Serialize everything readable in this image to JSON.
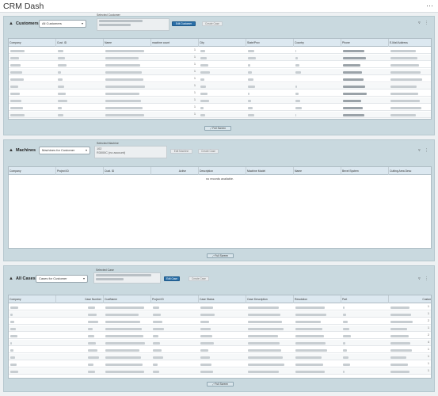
{
  "app": {
    "title": "CRM Dash",
    "menu_glyph": "⋯"
  },
  "icons": {
    "collapse": "chevron-up-icon",
    "filter": "filter-icon",
    "menu": "vertical-dots-icon",
    "fullscreen": "expand-icon"
  },
  "colors": {
    "primary_button": "#2a6fa8",
    "panel_bg": "#c9d9df",
    "header_bg": "#dce8f0"
  },
  "customers": {
    "title": "Customers",
    "filter_value": "All Customers",
    "selected_label": "Selected Customer",
    "edit_label": "Edit Customer",
    "create_label": "Create Case",
    "columns": [
      "Company",
      "Cust. ID",
      "Name",
      "machine count",
      "City",
      "State/Prov",
      "Country",
      "Phone",
      "E-Mail Address"
    ],
    "machine_counts": [
      "1",
      "1",
      "1",
      "1",
      "1",
      "1",
      "1",
      "1",
      "1",
      "1"
    ],
    "full_screen": "Full Screen"
  },
  "machines": {
    "title": "Machines",
    "filter_value": "Machines for Customer",
    "selected_label": "Selected Machine",
    "selected_line1": "102",
    "selected_line2": "R3000C (no account)",
    "edit_label": "Edit Machine",
    "create_label": "Create Case",
    "columns": [
      "Company",
      "Project ID",
      "Cust. ID",
      "Active",
      "Description",
      "Machine Model",
      "Name",
      "Bevel System",
      "Cutting Area Desc"
    ],
    "empty_text": "no records available.",
    "full_screen": "Full Screen"
  },
  "cases": {
    "title": "All Cases",
    "filter_value": "Cases for Customer",
    "selected_label": "Selected Case",
    "edit_label": "Edit Case",
    "create_label": "Create Case",
    "columns": [
      "Company",
      "Case Number",
      "CustName",
      "Project ID",
      "Case Status",
      "Case Description",
      "Resolution",
      "Part",
      "Custom"
    ],
    "last_col": [
      "1",
      "1",
      "2",
      "1",
      "2",
      "4",
      "1",
      "1",
      "1",
      "1"
    ],
    "full_screen": "Full Screen"
  }
}
